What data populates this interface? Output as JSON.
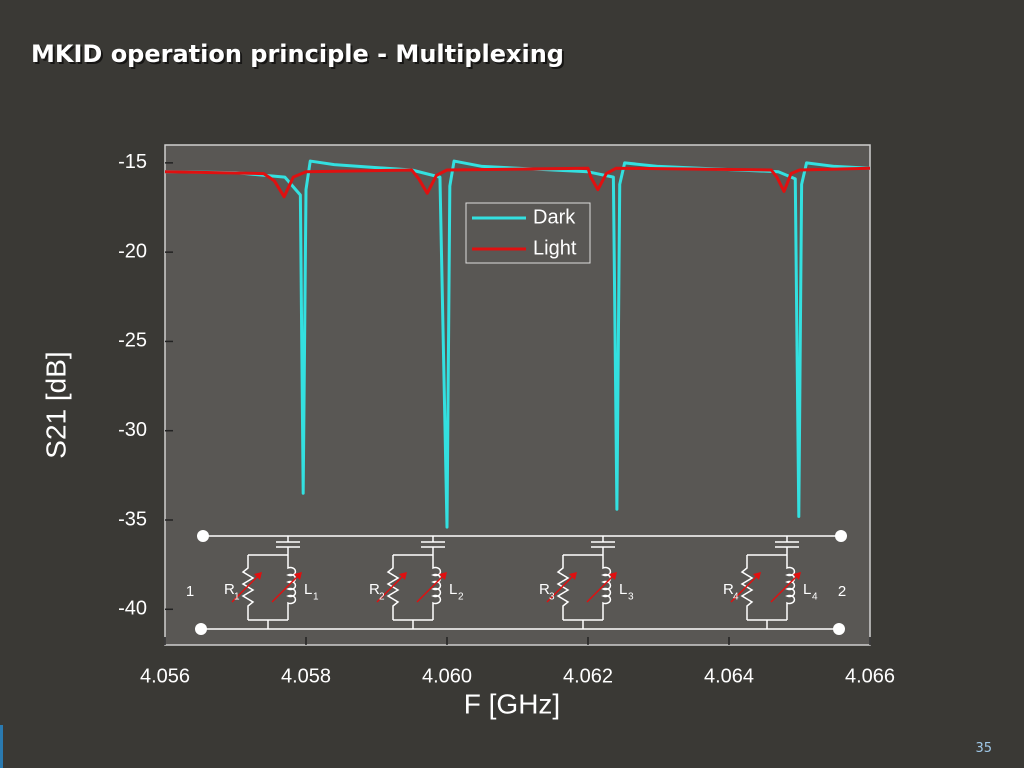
{
  "slide_title": "MKID operation principle - Multiplexing",
  "page_number": "35",
  "chart_data": {
    "type": "line",
    "x_label": "F  [GHz]",
    "y_label": "S21 [dB]",
    "xlim": [
      4.056,
      4.066
    ],
    "xticks": [
      4.056,
      4.058,
      {
        "value": 4.06,
        "label": "4.060"
      },
      4.062,
      4.064,
      4.066
    ],
    "ylim": [
      -42,
      -14
    ],
    "yticks": [
      -15,
      -20,
      -25,
      -30,
      -35,
      -40
    ],
    "legend": "upper center",
    "series": [
      {
        "name": "Dark",
        "color": "#33e0e0",
        "x": [
          4.056,
          4.057,
          4.0577,
          4.05792,
          4.05796,
          4.058,
          4.05806,
          4.0584,
          4.0595,
          4.0599,
          4.06,
          4.06004,
          4.0601,
          4.0605,
          4.062,
          4.06236,
          4.06241,
          4.06245,
          4.06252,
          4.063,
          4.0647,
          4.06494,
          4.06499,
          4.06503,
          4.0651,
          4.0655,
          4.066
        ],
        "values": [
          -15.5,
          -15.55,
          -15.8,
          -16.8,
          -33.5,
          -16.5,
          -14.9,
          -15.1,
          -15.4,
          -15.8,
          -35.4,
          -16.3,
          -14.9,
          -15.2,
          -15.5,
          -15.8,
          -34.4,
          -16.2,
          -15.0,
          -15.2,
          -15.5,
          -15.9,
          -34.8,
          -16.2,
          -15.0,
          -15.2,
          -15.3
        ]
      },
      {
        "name": "Light",
        "color": "#e01010",
        "x": [
          4.056,
          4.0574,
          4.05755,
          4.05769,
          4.05782,
          4.058,
          4.0595,
          4.0596,
          4.05972,
          4.05985,
          4.06,
          4.062,
          4.06204,
          4.06214,
          4.06226,
          4.0624,
          4.0646,
          4.06468,
          4.06478,
          4.06488,
          4.065,
          4.066
        ],
        "values": [
          -15.5,
          -15.6,
          -16.0,
          -16.9,
          -15.8,
          -15.5,
          -15.4,
          -15.9,
          -16.7,
          -15.7,
          -15.4,
          -15.3,
          -15.8,
          -16.5,
          -15.6,
          -15.3,
          -15.4,
          -15.8,
          -16.6,
          -15.6,
          -15.4,
          -15.3
        ]
      }
    ]
  },
  "circuit": {
    "ports": [
      "1",
      "2"
    ],
    "resonators": [
      {
        "r": "R",
        "r_sub": "1",
        "l": "L",
        "l_sub": "1"
      },
      {
        "r": "R",
        "r_sub": "2",
        "l": "L",
        "l_sub": "2"
      },
      {
        "r": "R",
        "r_sub": "3",
        "l": "L",
        "l_sub": "3"
      },
      {
        "r": "R",
        "r_sub": "4",
        "l": "L",
        "l_sub": "4"
      }
    ]
  }
}
